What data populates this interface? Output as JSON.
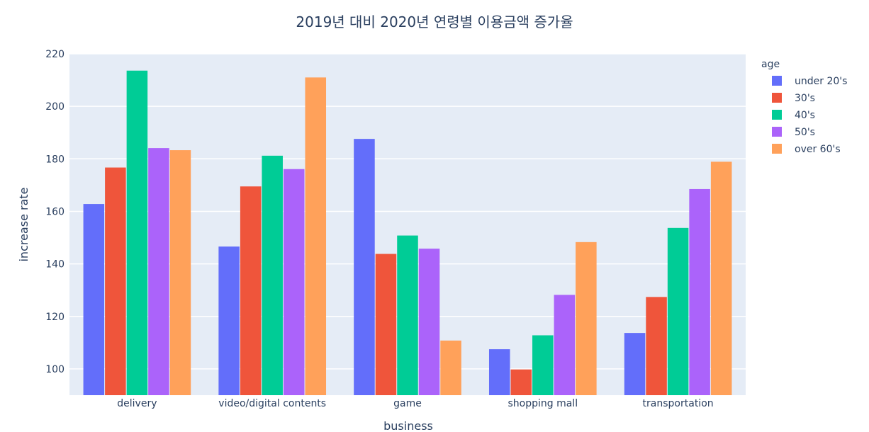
{
  "chart_data": {
    "type": "bar",
    "title": "2019년 대비 2020년 연령별 이용금액 증가율",
    "xlabel": "business",
    "ylabel": "increase rate",
    "categories": [
      "delivery",
      "video/digital contents",
      "game",
      "shopping mall",
      "transportation"
    ],
    "series": [
      {
        "name": "under 20's",
        "color": "#636efa",
        "values": [
          162.8,
          146.6,
          187.6,
          107.5,
          113.7
        ]
      },
      {
        "name": "30's",
        "color": "#ef553b",
        "values": [
          176.7,
          169.5,
          143.8,
          99.8,
          127.4
        ]
      },
      {
        "name": "40's",
        "color": "#00cc96",
        "values": [
          213.6,
          181.2,
          150.8,
          112.8,
          153.7
        ]
      },
      {
        "name": "50's",
        "color": "#ab63fa",
        "values": [
          184.1,
          176.1,
          145.8,
          128.2,
          168.5
        ]
      },
      {
        "name": "over 60's",
        "color": "#ffa15a",
        "values": [
          183.3,
          211.0,
          110.8,
          148.3,
          178.9
        ]
      }
    ],
    "ylim": [
      90,
      220
    ],
    "yticks": [
      100,
      120,
      140,
      160,
      180,
      200,
      220
    ],
    "legend": {
      "title": "age",
      "position": "top-right"
    },
    "grid": true,
    "background_color": "#e5ecf6"
  }
}
